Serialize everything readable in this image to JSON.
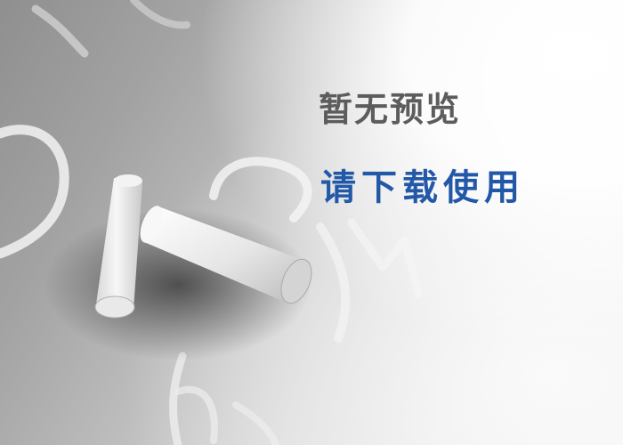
{
  "preview": {
    "line1": "暂无预览",
    "line2": "请下载使用"
  },
  "colors": {
    "line1_text": "#5c5c5c",
    "line2_text": "#2358a8",
    "chalk": "#f0f0f0"
  },
  "graphic": {
    "object": "chalk-sticks-on-chalkboard"
  }
}
